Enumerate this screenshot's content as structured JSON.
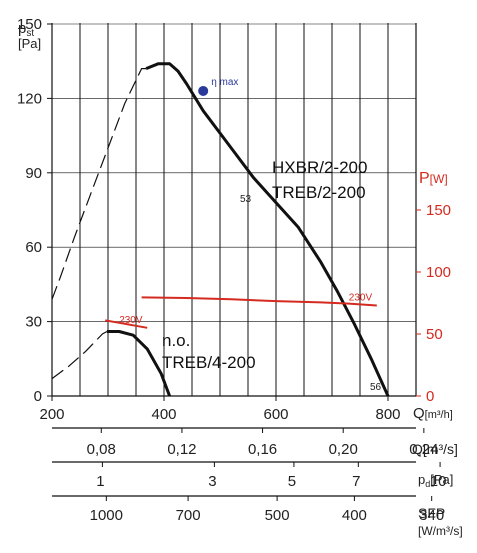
{
  "chart_data": {
    "type": "line",
    "y_label_main": "p",
    "y_label_sub": "st",
    "y_unit": "[Pa]",
    "y_right_label": "P",
    "y_right_unit": "[W]",
    "x_label": "Q",
    "x_unit": "[m³/h]",
    "xlim": [
      200,
      800
    ],
    "ylim": [
      0,
      150
    ],
    "y_right_lim": [
      0,
      150
    ],
    "x_ticks": [
      "200",
      "400",
      "600",
      "800"
    ],
    "y_ticks": [
      "0",
      "30",
      "60",
      "90",
      "120",
      "150"
    ],
    "y_right_ticks": [
      "0",
      "50",
      "100",
      "150"
    ],
    "model_labels": [
      "HXBR/2-200",
      "TREB/2-200"
    ],
    "model_labels_2": [
      "n.o.",
      "TREB/4-200"
    ],
    "eta_label": "η max",
    "point_labels": [
      "53",
      "56"
    ],
    "series": [
      {
        "kind": "pressure",
        "dashed_x": [
          200,
          215,
          240,
          270,
          300,
          330,
          360,
          368
        ],
        "dashed_y": [
          39,
          48,
          64,
          82,
          100,
          118,
          132,
          132
        ],
        "x": [
          368,
          390,
          410,
          425,
          440,
          470,
          520,
          560,
          600,
          640,
          680,
          710,
          740,
          770,
          800
        ],
        "y": [
          132,
          134,
          134,
          131,
          126,
          115,
          100,
          88,
          78,
          68,
          54,
          42,
          29,
          15,
          0
        ]
      },
      {
        "kind": "pressure",
        "dashed_x": [
          200,
          230,
          260,
          290,
          298
        ],
        "dashed_y": [
          7,
          12,
          18,
          25,
          26
        ],
        "x": [
          298,
          320,
          345,
          370,
          395,
          410
        ],
        "y": [
          26,
          26,
          24.5,
          19,
          9,
          0
        ]
      },
      {
        "kind": "power",
        "name": "230V",
        "x": [
          360,
          440,
          520,
          600,
          680,
          730,
          780
        ],
        "y": [
          79.5,
          79,
          78,
          76.5,
          75.5,
          74.5,
          73
        ]
      },
      {
        "kind": "power",
        "name": "230V",
        "x": [
          295,
          320,
          345,
          370
        ],
        "y": [
          61,
          59,
          57,
          55
        ]
      }
    ],
    "eta_point": {
      "x": 470,
      "y": 123
    },
    "q_scale": {
      "unit": "Q[m³/s]",
      "labels": [
        "0,08",
        "0,12",
        "0,16",
        "0,20",
        "0,24"
      ],
      "values": [
        0.08,
        0.12,
        0.16,
        0.2,
        0.24
      ]
    },
    "pd_scale": {
      "unit": "p_d[Pa]",
      "labels": [
        "1",
        "3",
        "5",
        "7",
        "10"
      ],
      "values": [
        1,
        3,
        5,
        7,
        10
      ]
    },
    "sfp_scale": {
      "unit_1": "SFP",
      "unit_2": "[W/m³/s]",
      "labels": [
        "1000",
        "700",
        "500",
        "400",
        "340"
      ]
    },
    "colors": {
      "pressure": "#111111",
      "power": "#d42a1f",
      "eta": "#2a3a9a",
      "grid": "#111111"
    }
  }
}
